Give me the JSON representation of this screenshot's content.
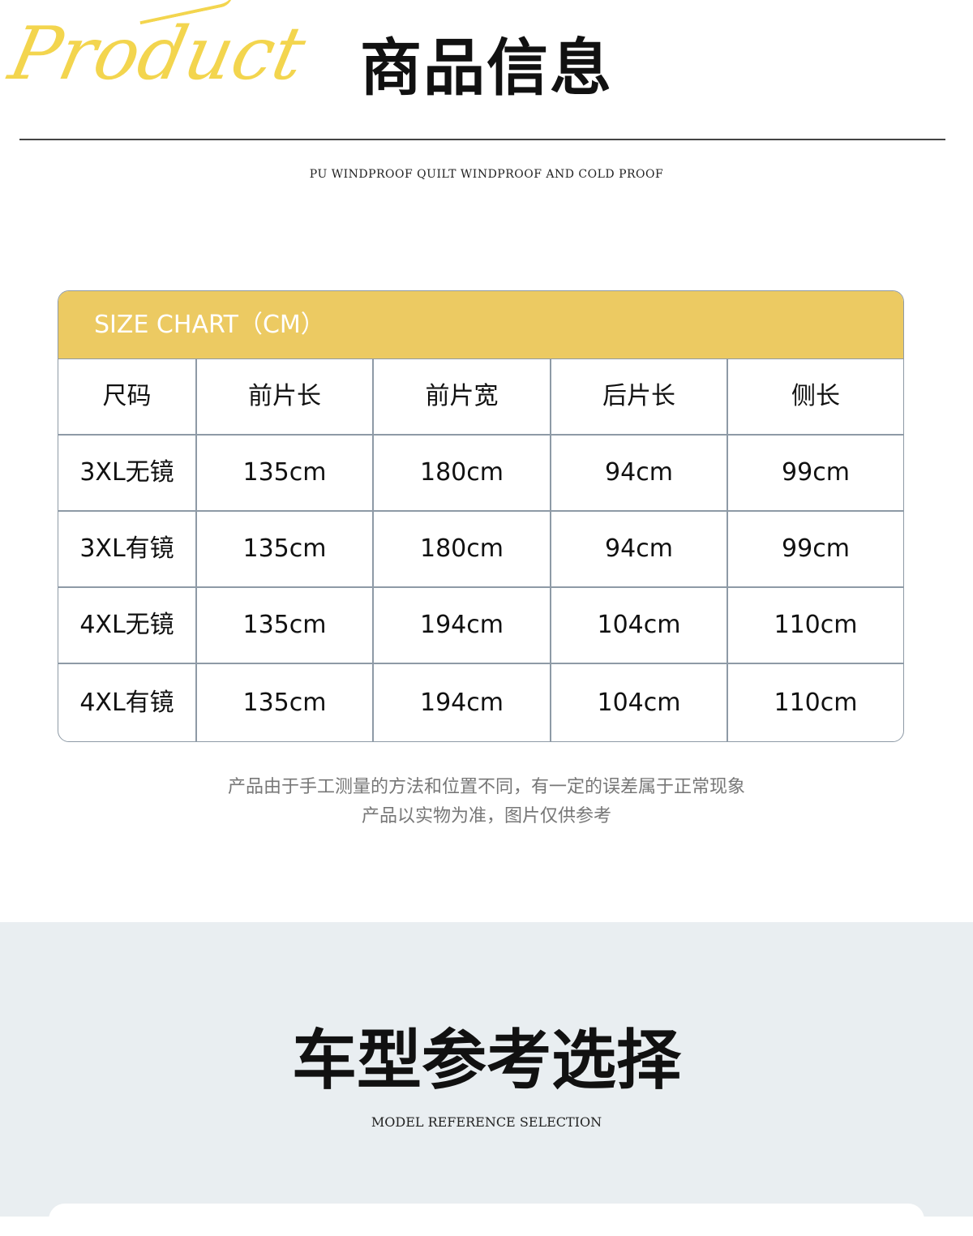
{
  "header": {
    "watermark": "Product",
    "title": "商品信息",
    "subtitle": "PU WINDPROOF QUILT  WINDPROOF AND COLD PROOF"
  },
  "size_chart": {
    "title": "SIZE CHART（CM）",
    "columns": [
      "尺码",
      "前片长",
      "前片宽",
      "后片长",
      "侧长"
    ],
    "rows": [
      [
        "3XL无镜",
        "135cm",
        "180cm",
        "94cm",
        "99cm"
      ],
      [
        "3XL有镜",
        "135cm",
        "180cm",
        "94cm",
        "99cm"
      ],
      [
        "4XL无镜",
        "135cm",
        "194cm",
        "104cm",
        "110cm"
      ],
      [
        "4XL有镜",
        "135cm",
        "194cm",
        "104cm",
        "110cm"
      ]
    ],
    "accent_color": "#ecca62"
  },
  "notes": [
    "产品由于手工测量的方法和位置不同，有一定的误差属于正常现象",
    "产品以实物为准，图片仅供参考"
  ],
  "section2": {
    "title": "车型参考选择",
    "subtitle": "MODEL REFERENCE SELECTION"
  }
}
